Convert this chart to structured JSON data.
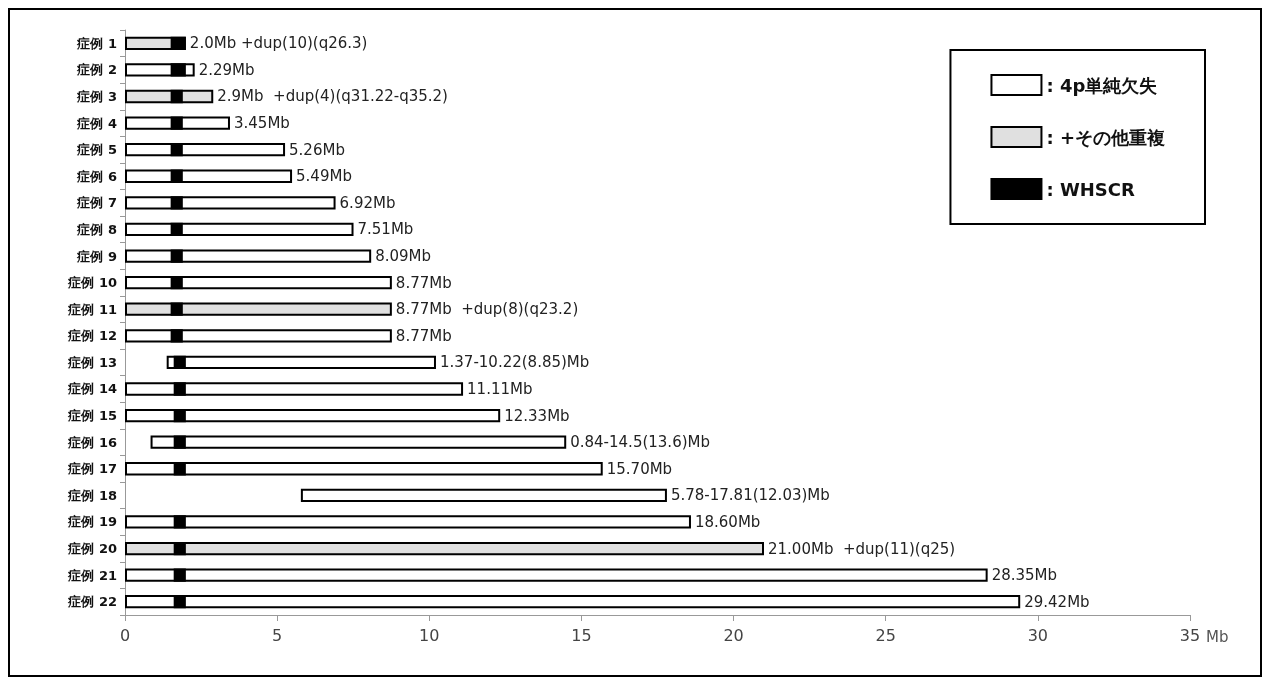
{
  "chart_data": {
    "type": "bar",
    "orientation": "horizontal",
    "xlabel": "Mb",
    "categories": [
      "症例 1",
      "症例 2",
      "症例 3",
      "症例 4",
      "症例 5",
      "症例 6",
      "症例 7",
      "症例 8",
      "症例 9",
      "症例 10",
      "症例 11",
      "症例 12",
      "症例 13",
      "症例 14",
      "症例 15",
      "症例 16",
      "症例 17",
      "症例 18",
      "症例 19",
      "症例 20",
      "症例 21",
      "症例 22"
    ],
    "series": [
      {
        "name": ": 4p単純欠失",
        "color": "#ffffff",
        "base": [
          null,
          0,
          null,
          0,
          0,
          0,
          0,
          0,
          0,
          0,
          null,
          0,
          1.37,
          0,
          0,
          0.84,
          0,
          5.78,
          0,
          null,
          0,
          0
        ],
        "values": [
          null,
          2.29,
          null,
          3.45,
          5.26,
          5.49,
          6.92,
          7.51,
          8.09,
          8.77,
          null,
          8.77,
          8.85,
          11.11,
          12.33,
          13.66,
          15.7,
          12.03,
          18.6,
          null,
          28.35,
          29.42
        ],
        "value_labels": [
          null,
          "2.29Mb",
          null,
          "3.45Mb",
          "5.26Mb",
          "5.49Mb",
          "6.92Mb",
          "7.51Mb",
          "8.09Mb",
          "8.77Mb",
          null,
          "8.77Mb",
          "1.37-10.22(8.85)Mb",
          "11.11Mb",
          "12.33Mb",
          "0.84-14.5(13.6)Mb",
          "15.70Mb",
          "5.78-17.81(12.03)Mb",
          "18.60Mb",
          null,
          "28.35Mb",
          "29.42Mb"
        ]
      },
      {
        "name": ": +その他重複",
        "color": "#e0e0e0",
        "values": [
          2.0,
          null,
          2.9,
          null,
          null,
          null,
          null,
          null,
          null,
          null,
          8.77,
          null,
          null,
          null,
          null,
          null,
          null,
          null,
          null,
          21.0,
          null,
          null
        ],
        "value_labels": [
          "2.0Mb +dup(10)(q26.3)",
          null,
          "2.9Mb  +dup(4)(q31.22-q35.2)",
          null,
          null,
          null,
          null,
          null,
          null,
          null,
          "8.77Mb  +dup(8)(q23.2)",
          null,
          null,
          null,
          null,
          null,
          null,
          null,
          null,
          "21.00Mb  +dup(11)(q25)",
          null,
          null
        ]
      },
      {
        "name": ": WHSCR",
        "color": "#000000",
        "base": [
          1.5,
          1.5,
          1.5,
          1.5,
          1.5,
          1.5,
          1.5,
          1.5,
          1.5,
          1.5,
          1.5,
          1.5,
          1.6,
          1.6,
          1.6,
          1.6,
          1.6,
          null,
          1.6,
          1.6,
          1.6,
          1.6
        ],
        "values": [
          0.5,
          0.5,
          0.4,
          0.4,
          0.4,
          0.4,
          0.4,
          0.4,
          0.4,
          0.4,
          0.4,
          0.4,
          0.4,
          0.4,
          0.4,
          0.4,
          0.4,
          null,
          0.4,
          0.4,
          0.4,
          0.4
        ]
      }
    ],
    "xlim": [
      0,
      35
    ],
    "xticks": [
      0,
      5,
      10,
      15,
      20,
      25,
      30,
      35
    ],
    "grid": false,
    "legend": "top right"
  }
}
